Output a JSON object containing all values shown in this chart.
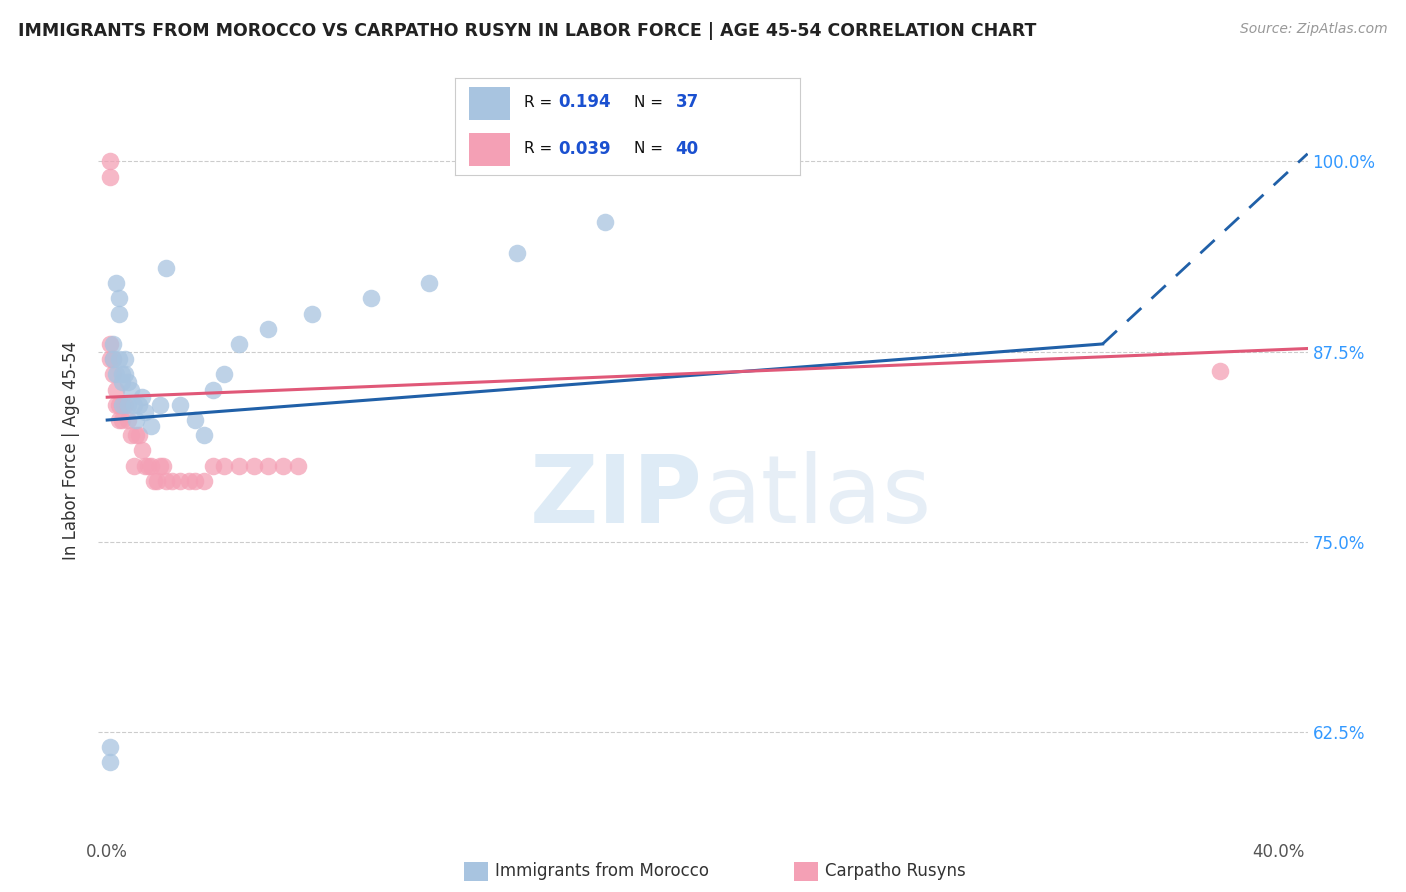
{
  "title": "IMMIGRANTS FROM MOROCCO VS CARPATHO RUSYN IN LABOR FORCE | AGE 45-54 CORRELATION CHART",
  "source": "Source: ZipAtlas.com",
  "ylabel": "In Labor Force | Age 45-54",
  "y_ticks": [
    0.625,
    0.75,
    0.875,
    1.0
  ],
  "y_tick_labels": [
    "62.5%",
    "75.0%",
    "87.5%",
    "100.0%"
  ],
  "morocco_R": 0.194,
  "morocco_N": 37,
  "rusyn_R": 0.039,
  "rusyn_N": 40,
  "morocco_color": "#a8c4e0",
  "rusyn_color": "#f4a0b5",
  "morocco_line_color": "#2060a8",
  "rusyn_line_color": "#e05878",
  "legend_label_morocco": "Immigrants from Morocco",
  "legend_label_rusyn": "Carpatho Rusyns",
  "watermark_zip": "ZIP",
  "watermark_atlas": "atlas",
  "background_color": "#ffffff",
  "morocco_x": [
    0.001,
    0.001,
    0.002,
    0.002,
    0.003,
    0.003,
    0.004,
    0.004,
    0.004,
    0.005,
    0.005,
    0.005,
    0.006,
    0.006,
    0.007,
    0.007,
    0.008,
    0.009,
    0.01,
    0.011,
    0.012,
    0.013,
    0.015,
    0.018,
    0.02,
    0.025,
    0.03,
    0.033,
    0.036,
    0.04,
    0.045,
    0.055,
    0.07,
    0.09,
    0.11,
    0.14,
    0.17
  ],
  "morocco_y": [
    0.615,
    0.605,
    0.88,
    0.87,
    0.86,
    0.92,
    0.91,
    0.9,
    0.87,
    0.86,
    0.855,
    0.84,
    0.87,
    0.86,
    0.855,
    0.84,
    0.85,
    0.84,
    0.83,
    0.84,
    0.845,
    0.835,
    0.826,
    0.84,
    0.93,
    0.84,
    0.83,
    0.82,
    0.85,
    0.86,
    0.88,
    0.89,
    0.9,
    0.91,
    0.92,
    0.94,
    0.96
  ],
  "rusyn_x": [
    0.001,
    0.001,
    0.001,
    0.001,
    0.002,
    0.002,
    0.003,
    0.003,
    0.004,
    0.004,
    0.005,
    0.005,
    0.006,
    0.007,
    0.008,
    0.009,
    0.01,
    0.011,
    0.012,
    0.013,
    0.014,
    0.015,
    0.016,
    0.017,
    0.018,
    0.019,
    0.02,
    0.022,
    0.025,
    0.028,
    0.03,
    0.033,
    0.036,
    0.04,
    0.045,
    0.05,
    0.055,
    0.06,
    0.065,
    0.38
  ],
  "rusyn_y": [
    1.0,
    0.99,
    0.88,
    0.87,
    0.87,
    0.86,
    0.85,
    0.84,
    0.84,
    0.83,
    0.84,
    0.83,
    0.84,
    0.83,
    0.82,
    0.8,
    0.82,
    0.82,
    0.81,
    0.8,
    0.8,
    0.8,
    0.79,
    0.79,
    0.8,
    0.8,
    0.79,
    0.79,
    0.79,
    0.79,
    0.79,
    0.79,
    0.8,
    0.8,
    0.8,
    0.8,
    0.8,
    0.8,
    0.8,
    0.862
  ],
  "xlim": [
    -0.003,
    0.41
  ],
  "ylim": [
    0.555,
    1.065
  ],
  "xline_solid_end": 0.34,
  "xline_dashed_end": 0.41
}
